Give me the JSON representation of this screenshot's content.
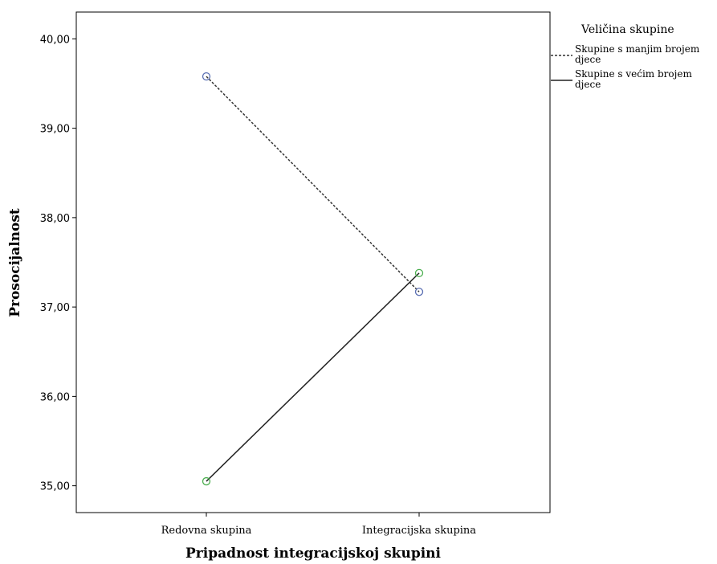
{
  "chart_data": {
    "type": "line",
    "categories": [
      "Redovna skupina",
      "Integracijska skupina"
    ],
    "xlabel": "Pripadnost integracijskoj skupini",
    "ylabel": "Prosocijalnost",
    "ylim": [
      34.7,
      40.3
    ],
    "yticks": [
      "35,00",
      "36,00",
      "37,00",
      "38,00",
      "39,00",
      "40,00"
    ],
    "ytick_values": [
      35,
      36,
      37,
      38,
      39,
      40
    ],
    "grid": false,
    "legend": {
      "title": "Veličina skupine",
      "placement": "top-right-outside"
    },
    "series": [
      {
        "name_lines": [
          "Skupine s manjim brojem",
          "djece"
        ],
        "values": [
          39.58,
          37.17
        ],
        "line_style": "dashed",
        "line_color": "#333333",
        "marker_color": "#5a6fb3"
      },
      {
        "name_lines": [
          "Skupine s većim brojem",
          "djece"
        ],
        "values": [
          35.05,
          37.38
        ],
        "line_style": "solid",
        "line_color": "#222222",
        "marker_color": "#4caf50"
      }
    ]
  }
}
